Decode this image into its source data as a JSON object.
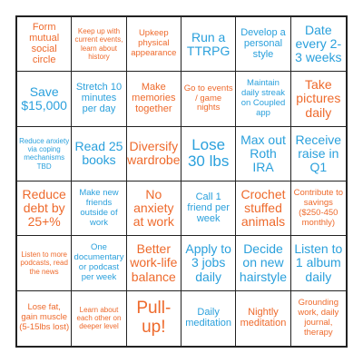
{
  "colors": {
    "orange": "#ee6a2c",
    "blue": "#2aa0dc",
    "grid": "#222222"
  },
  "cells": [
    "Form mutual social circle",
    "Keep up with current events, learn about history",
    "Upkeep physical appearance",
    "Run a TTRPG",
    "Develop a personal style",
    "Date every 2-3 weeks",
    "Save $15,000",
    "Stretch 10 minutes per day",
    "Make memories together",
    "Go to events / game nights",
    "Maintain daily streak on Coupled app",
    "Take pictures daily",
    "Reduce anxiety via coping mechanisms TBD",
    "Read 25 books",
    "Diversify wardrobe",
    "Lose 30 lbs",
    "Max out Roth IRA",
    "Receive raise in Q1",
    "Reduce debt by 25+%",
    "Make new friends outside of work",
    "No anxiety at work",
    "Call 1 friend per week",
    "Crochet stuffed animals",
    "Contribute to savings ($250-450 monthly)",
    "Listen to more podcasts, read the news",
    "One documentary or podcast per week",
    "Better work-life balance",
    "Apply to 3 jobs daily",
    "Decide on new hairstyle",
    "Listen to 1 album daily",
    "Lose fat, gain muscle (5-15lbs lost)",
    "Learn about each other on deeper level",
    "Pull-up!",
    "Daily meditation",
    "Nightly meditation",
    "Grounding work, daily journal, therapy"
  ]
}
